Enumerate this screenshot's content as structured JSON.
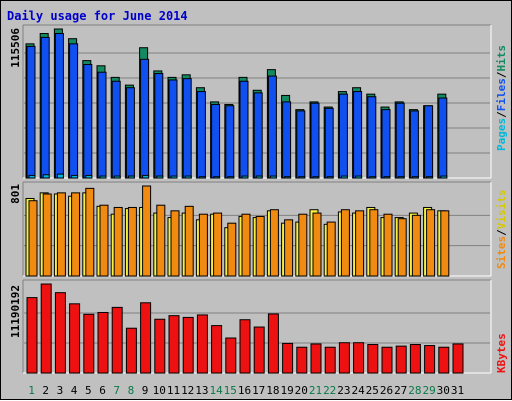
{
  "title": "Daily usage for June 2014",
  "colors": {
    "frame": "#c0c0c0",
    "title": "#0000cc",
    "hits": "#138a5f",
    "files": "#1050f0",
    "pages": "#00b8d8",
    "visits": "#f8f040",
    "sites": "#f08a10",
    "kbytes": "#ee1111",
    "weekend": "#0a7a4a",
    "weekday": "#000000"
  },
  "legend": {
    "pages": "Pages",
    "files": "Files",
    "hits": "Hits",
    "visits": "Visits",
    "sites": "Sites",
    "kbytes": "KBytes",
    "sep": "/"
  },
  "chart_data": [
    {
      "type": "bar",
      "name": "hits-files-pages",
      "axis_max_label": "115506",
      "ylim": [
        0,
        115506
      ],
      "categories": [
        "1",
        "2",
        "3",
        "4",
        "5",
        "6",
        "7",
        "8",
        "9",
        "10",
        "11",
        "12",
        "13",
        "14",
        "15",
        "16",
        "17",
        "18",
        "19",
        "20",
        "21",
        "22",
        "23",
        "24",
        "25",
        "26",
        "27",
        "28",
        "29",
        "30",
        "31"
      ],
      "series": [
        {
          "name": "Hits",
          "values": [
            104000,
            112000,
            115506,
            108000,
            91000,
            87000,
            78000,
            72000,
            101000,
            83000,
            78000,
            80000,
            70000,
            59000,
            57000,
            78000,
            68000,
            84000,
            64000,
            53000,
            59000,
            55000,
            67000,
            70000,
            65000,
            55000,
            59000,
            53000,
            56000,
            65000,
            0
          ]
        },
        {
          "name": "Files",
          "values": [
            102000,
            109000,
            112000,
            104000,
            88000,
            82000,
            75000,
            70000,
            92000,
            81000,
            76000,
            77000,
            67000,
            57000,
            56000,
            75000,
            66000,
            79000,
            59000,
            52000,
            58000,
            54000,
            65000,
            67000,
            63000,
            53000,
            58000,
            52000,
            56000,
            62000,
            0
          ]
        },
        {
          "name": "Pages",
          "values": [
            2000,
            2500,
            3000,
            2000,
            2000,
            1500,
            1500,
            1500,
            2000,
            1500,
            1500,
            1500,
            1000,
            1000,
            1000,
            1500,
            1500,
            1500,
            1000,
            1000,
            1000,
            1000,
            1500,
            1500,
            1000,
            1000,
            1000,
            1000,
            1000,
            1500,
            0
          ]
        }
      ]
    },
    {
      "type": "bar",
      "name": "visits-sites",
      "axis_max_label": "801",
      "ylim": [
        0,
        801
      ],
      "categories": [
        "1",
        "2",
        "3",
        "4",
        "5",
        "6",
        "7",
        "8",
        "9",
        "10",
        "11",
        "12",
        "13",
        "14",
        "15",
        "16",
        "17",
        "18",
        "19",
        "20",
        "21",
        "22",
        "23",
        "24",
        "25",
        "26",
        "27",
        "28",
        "29",
        "30",
        "31"
      ],
      "series": [
        {
          "name": "Visits",
          "values": [
            690,
            740,
            730,
            710,
            740,
            620,
            550,
            600,
            610,
            560,
            520,
            560,
            500,
            550,
            430,
            530,
            520,
            580,
            470,
            480,
            590,
            460,
            570,
            560,
            610,
            520,
            520,
            560,
            610,
            580,
            0
          ]
        },
        {
          "name": "Sites",
          "values": [
            670,
            730,
            740,
            740,
            780,
            630,
            610,
            610,
            801,
            630,
            580,
            620,
            550,
            560,
            470,
            550,
            530,
            590,
            500,
            550,
            560,
            480,
            590,
            580,
            590,
            550,
            510,
            540,
            590,
            580,
            0
          ]
        }
      ]
    },
    {
      "type": "bar",
      "name": "kbytes",
      "axis_max_label": "11190192",
      "ylim": [
        0,
        11190192
      ],
      "categories": [
        "1",
        "2",
        "3",
        "4",
        "5",
        "6",
        "7",
        "8",
        "9",
        "10",
        "11",
        "12",
        "13",
        "14",
        "15",
        "16",
        "17",
        "18",
        "19",
        "20",
        "21",
        "22",
        "23",
        "24",
        "25",
        "26",
        "27",
        "28",
        "29",
        "30",
        "31"
      ],
      "series": [
        {
          "name": "KBytes",
          "values": [
            9480000,
            11190192,
            10100000,
            8700000,
            7380000,
            7610000,
            8250000,
            5630000,
            8830000,
            6760000,
            7210000,
            6990000,
            7300000,
            5960000,
            4400000,
            6700000,
            5780000,
            7420000,
            3720000,
            3240000,
            3650000,
            3240000,
            3810000,
            3810000,
            3580000,
            3240000,
            3380000,
            3580000,
            3450000,
            3240000,
            3650000
          ]
        }
      ]
    }
  ]
}
